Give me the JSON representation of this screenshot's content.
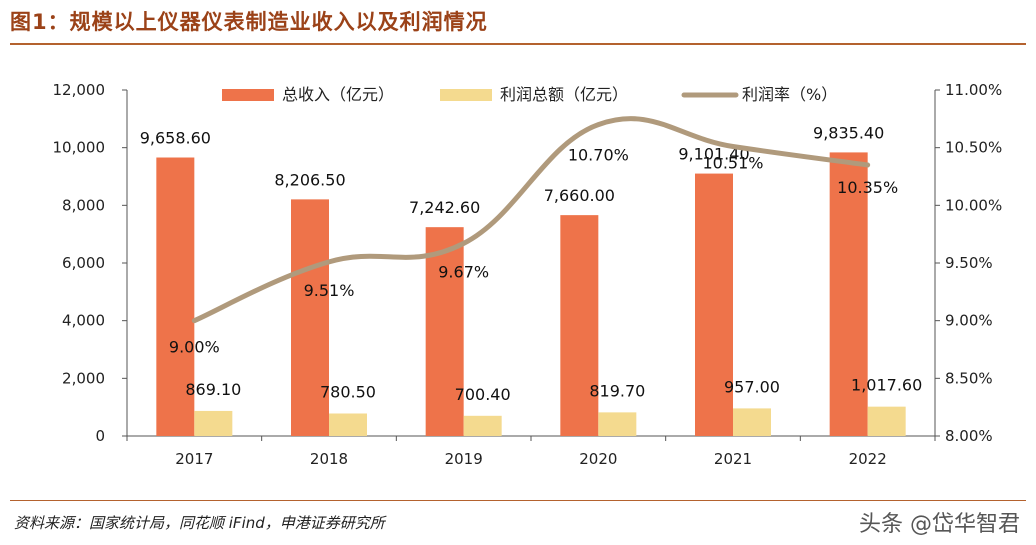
{
  "title": "图1：规模以上仪器仪表制造业收入以及利润情况",
  "source": "资料来源：国家统计局，同花顺 iFind，申港证券研究所",
  "watermark": "头条 @岱华智君",
  "colors": {
    "revenue": "#ee734a",
    "profit": "#f4da8f",
    "rate": "#b09a7c"
  },
  "chart_data": {
    "type": "bar",
    "categories": [
      "2017",
      "2018",
      "2019",
      "2020",
      "2021",
      "2022"
    ],
    "series": [
      {
        "name": "总收入（亿元）",
        "type": "bar",
        "axis": "left",
        "values": [
          9658.6,
          8206.5,
          7242.6,
          7660.0,
          9101.4,
          9835.4
        ],
        "labels": [
          "9,658.60",
          "8,206.50",
          "7,242.60",
          "7,660.00",
          "9,101.40",
          "9,835.40"
        ]
      },
      {
        "name": "利润总额（亿元）",
        "type": "bar",
        "axis": "left",
        "values": [
          869.1,
          780.5,
          700.4,
          819.7,
          957.0,
          1017.6
        ],
        "labels": [
          "869.10",
          "780.50",
          "700.40",
          "819.70",
          "957.00",
          "1,017.60"
        ]
      },
      {
        "name": "利润率（%）",
        "type": "line",
        "axis": "right",
        "values": [
          9.0,
          9.51,
          9.67,
          10.7,
          10.51,
          10.35
        ],
        "labels": [
          "9.00%",
          "9.51%",
          "9.67%",
          "10.70%",
          "10.51%",
          "10.35%"
        ]
      }
    ],
    "ylim": [
      0,
      12000
    ],
    "yticks": [
      "0",
      "2,000",
      "4,000",
      "6,000",
      "8,000",
      "10,000",
      "12,000"
    ],
    "y2lim": [
      8.0,
      11.0
    ],
    "y2ticks": [
      "8.00%",
      "8.50%",
      "9.00%",
      "9.50%",
      "10.00%",
      "10.50%",
      "11.00%"
    ],
    "legend_position": "top",
    "grid": false
  }
}
